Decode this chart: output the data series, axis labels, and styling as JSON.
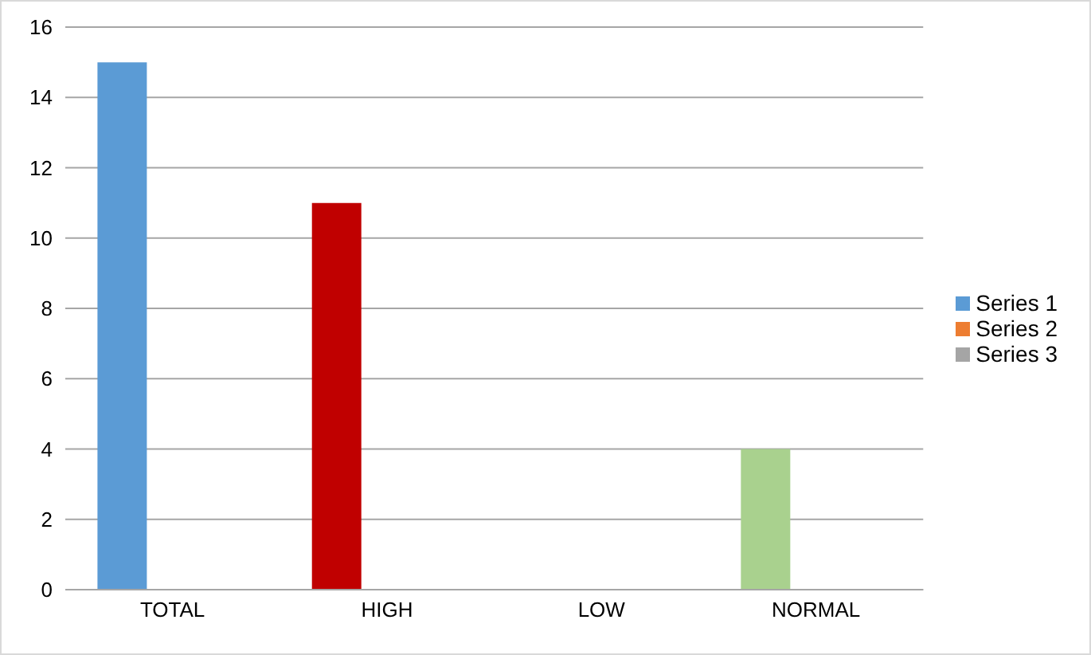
{
  "chart_data": {
    "type": "bar",
    "categories": [
      "TOTAL",
      "HIGH",
      "LOW",
      "NORMAL"
    ],
    "series": [
      {
        "name": "Series 1",
        "color": "#5b9bd5",
        "colors": [
          "#5b9bd5",
          "#c00000",
          "#5b9bd5",
          "#a9d18e"
        ],
        "values": [
          15,
          11,
          null,
          4
        ]
      },
      {
        "name": "Series 2",
        "color": "#ed7d31",
        "values": [
          null,
          null,
          null,
          null
        ]
      },
      {
        "name": "Series 3",
        "color": "#a5a5a5",
        "values": [
          null,
          null,
          null,
          null
        ]
      }
    ],
    "ylim": [
      0,
      16
    ],
    "yticks": [
      0,
      2,
      4,
      6,
      8,
      10,
      12,
      14,
      16
    ],
    "grid": "y",
    "legend": "right"
  }
}
